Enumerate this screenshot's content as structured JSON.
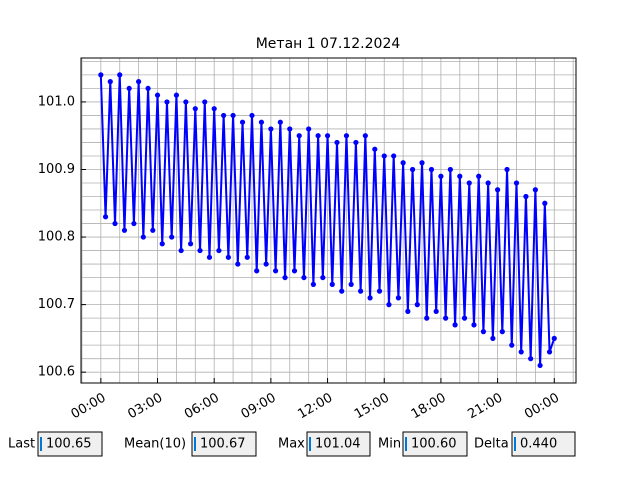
{
  "chart_data": {
    "type": "line",
    "title": "Метан 1 07.12.2024",
    "x": [
      0,
      0.25,
      0.5,
      0.75,
      1,
      1.25,
      1.5,
      1.75,
      2,
      2.25,
      2.5,
      2.75,
      3,
      3.25,
      3.5,
      3.75,
      4,
      4.25,
      4.5,
      4.75,
      5,
      5.25,
      5.5,
      5.75,
      6,
      6.25,
      6.5,
      6.75,
      7,
      7.25,
      7.5,
      7.75,
      8,
      8.25,
      8.5,
      8.75,
      9,
      9.25,
      9.5,
      9.75,
      10,
      10.25,
      10.5,
      10.75,
      11,
      11.25,
      11.5,
      11.75,
      12,
      12.25,
      12.5,
      12.75,
      13,
      13.25,
      13.5,
      13.75,
      14,
      14.25,
      14.5,
      14.75,
      15,
      15.25,
      15.5,
      15.75,
      16,
      16.25,
      16.5,
      16.75,
      17,
      17.25,
      17.5,
      17.75,
      18,
      18.25,
      18.5,
      18.75,
      19,
      19.25,
      19.5,
      19.75,
      20,
      20.25,
      20.5,
      20.75,
      21,
      21.25,
      21.5,
      21.75,
      22,
      22.25,
      22.5,
      22.75,
      23,
      23.25,
      23.5,
      23.75,
      24
    ],
    "series": [
      {
        "color": "#0000ff",
        "values": [
          101.04,
          100.83,
          101.03,
          100.82,
          101.04,
          100.81,
          101.02,
          100.82,
          101.03,
          100.8,
          101.02,
          100.81,
          101.01,
          100.79,
          101.0,
          100.8,
          101.01,
          100.78,
          101.0,
          100.79,
          100.99,
          100.78,
          101.0,
          100.77,
          100.99,
          100.78,
          100.98,
          100.77,
          100.98,
          100.76,
          100.97,
          100.77,
          100.98,
          100.75,
          100.97,
          100.76,
          100.96,
          100.75,
          100.97,
          100.74,
          100.96,
          100.75,
          100.95,
          100.74,
          100.96,
          100.73,
          100.95,
          100.74,
          100.95,
          100.73,
          100.94,
          100.72,
          100.95,
          100.73,
          100.94,
          100.72,
          100.95,
          100.71,
          100.93,
          100.72,
          100.92,
          100.7,
          100.92,
          100.71,
          100.91,
          100.69,
          100.9,
          100.7,
          100.91,
          100.68,
          100.9,
          100.69,
          100.89,
          100.68,
          100.9,
          100.67,
          100.89,
          100.68,
          100.88,
          100.67,
          100.89,
          100.66,
          100.88,
          100.65,
          100.87,
          100.66,
          100.9,
          100.64,
          100.88,
          100.63,
          100.86,
          100.62,
          100.87,
          100.61,
          100.85,
          100.63,
          100.65
        ]
      }
    ],
    "xlim": [
      -1.05,
      25.15
    ],
    "ylim": [
      100.584,
      101.065
    ],
    "xticks": [
      {
        "value": 0,
        "label": "00:00"
      },
      {
        "value": 3,
        "label": "03:00"
      },
      {
        "value": 6,
        "label": "06:00"
      },
      {
        "value": 9,
        "label": "09:00"
      },
      {
        "value": 12,
        "label": "12:00"
      },
      {
        "value": 15,
        "label": "15:00"
      },
      {
        "value": 18,
        "label": "18:00"
      },
      {
        "value": 21,
        "label": "21:00"
      },
      {
        "value": 24,
        "label": "00:00"
      }
    ],
    "xminorticks": [
      -1,
      1,
      2,
      4,
      5,
      7,
      8,
      10,
      11,
      13,
      14,
      16,
      17,
      19,
      20,
      22,
      23,
      25
    ],
    "yticks": [
      100.6,
      100.7,
      100.8,
      100.9,
      {
        "value": 101,
        "label": "101.0"
      }
    ],
    "yminorticks": [
      100.62,
      100.64,
      100.66,
      100.68,
      100.72,
      100.74,
      100.76,
      100.78,
      100.82,
      100.84,
      100.86,
      100.88,
      100.92,
      100.94,
      100.96,
      100.98,
      101.02,
      101.04,
      101.06
    ],
    "grid": true
  },
  "fields": [
    {
      "label": "Last",
      "value": "100.65"
    },
    {
      "label": "Mean(10)",
      "value": "100.67"
    },
    {
      "label": "Max",
      "value": "101.04"
    },
    {
      "label": "Min",
      "value": "100.60"
    },
    {
      "label": "Delta",
      "value": "0.440"
    }
  ]
}
